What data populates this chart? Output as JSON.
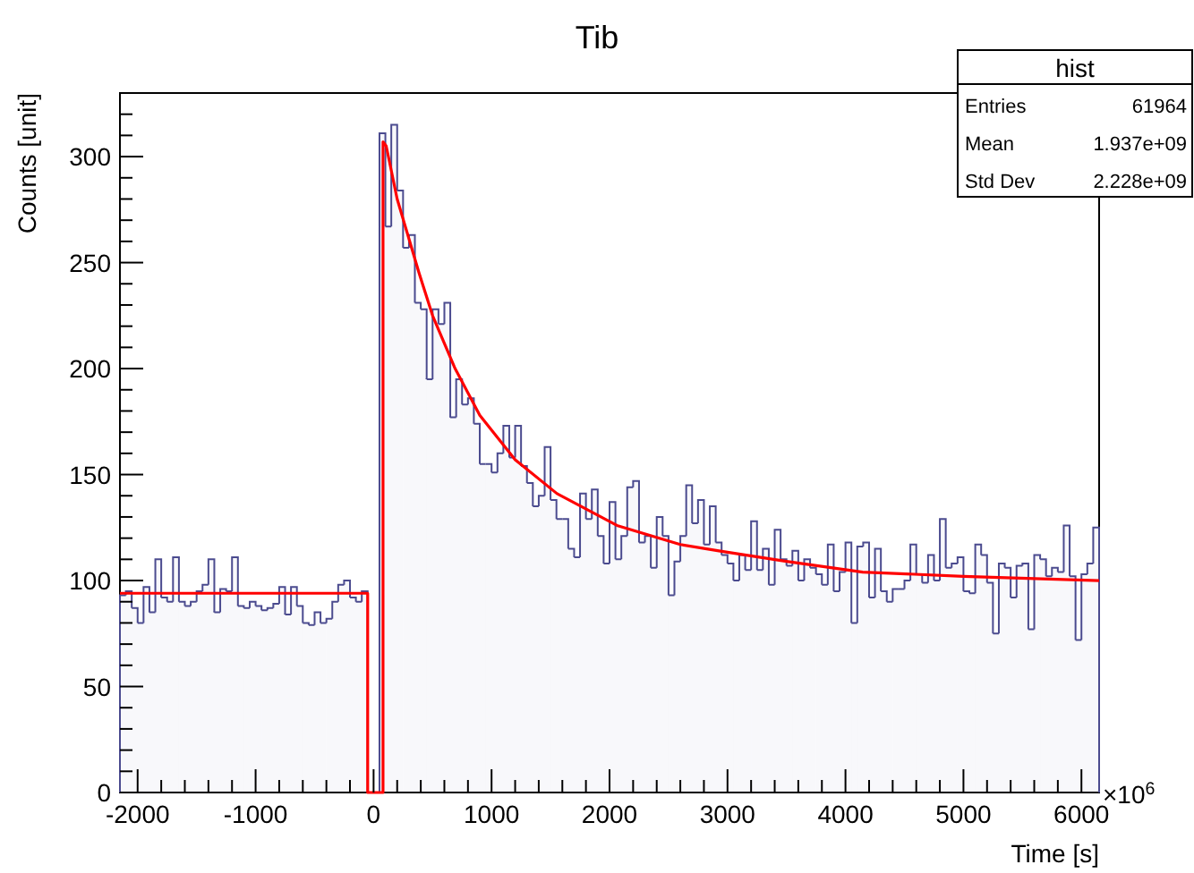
{
  "chart_data": {
    "type": "histogram",
    "title": "Tib",
    "xlabel": "Time [s]",
    "ylabel": "Counts [unit]",
    "annotations": [
      "×10$^{6}$",
      "hist",
      "Entries",
      "61964",
      "Mean",
      "1.937e+09",
      "Std Dev",
      "2.228e+09"
    ],
    "bins": [
      -2150,
      -2100,
      -2050,
      -2000,
      -1950,
      -1900,
      -1850,
      -1800,
      -1750,
      -1700,
      -1650,
      -1600,
      -1550,
      -1500,
      -1450,
      -1400,
      -1350,
      -1300,
      -1250,
      -1200,
      -1150,
      -1100,
      -1050,
      -1000,
      -950,
      -900,
      -850,
      -800,
      -750,
      -700,
      -650,
      -600,
      -550,
      -500,
      -450,
      -400,
      -350,
      -300,
      -250,
      -200,
      -150,
      -100,
      -50,
      0,
      50,
      100,
      150,
      200,
      250,
      300,
      350,
      400,
      450,
      500,
      550,
      600,
      650,
      700,
      750,
      800,
      850,
      900,
      950,
      1000,
      1050,
      1100,
      1150,
      1200,
      1250,
      1300,
      1350,
      1400,
      1450,
      1500,
      1550,
      1600,
      1650,
      1700,
      1750,
      1800,
      1850,
      1900,
      1950,
      2000,
      2050,
      2100,
      2150,
      2200,
      2250,
      2300,
      2350,
      2400,
      2450,
      2500,
      2550,
      2600,
      2650,
      2700,
      2750,
      2800,
      2850,
      2900,
      2950,
      3000,
      3050,
      3100,
      3150,
      3200,
      3250,
      3300,
      3350,
      3400,
      3450,
      3500,
      3550,
      3600,
      3650,
      3700,
      3750,
      3800,
      3850,
      3900,
      3950,
      4000,
      4050,
      4100,
      4150,
      4200,
      4250,
      4300,
      4350,
      4400,
      4450,
      4500,
      4550,
      4600,
      4650,
      4700,
      4750,
      4800,
      4850,
      4900,
      4950,
      5000,
      5050,
      5100,
      5150,
      5200,
      5250,
      5300,
      5350,
      5400,
      5450,
      5500,
      5550,
      5600,
      5650,
      5700,
      5750,
      5800,
      5850,
      5900,
      5950,
      6000,
      6050,
      6100,
      6150
    ],
    "series": [
      {
        "color": "#4b4b8f",
        "values": [
          93,
          95,
          87,
          80,
          97,
          85,
          110,
          92,
          90,
          111,
          90,
          88,
          90,
          95,
          98,
          110,
          85,
          96,
          95,
          111,
          88,
          87,
          90,
          88,
          86,
          87,
          89,
          97,
          84,
          97,
          88,
          80,
          79,
          85,
          80,
          82,
          90,
          98,
          100,
          92,
          90,
          95,
          0,
          0,
          311,
          267,
          315,
          284,
          257,
          263,
          231,
          228,
          195,
          228,
          221,
          231,
          177,
          195,
          183,
          186,
          174,
          155,
          155,
          151,
          160,
          173,
          158,
          173,
          154,
          146,
          135,
          140,
          163,
          138,
          129,
          129,
          115,
          111,
          141,
          129,
          143,
          121,
          108,
          137,
          110,
          121,
          144,
          147,
          118,
          121,
          106,
          130,
          121,
          93,
          109,
          121,
          145,
          127,
          138,
          117,
          135,
          118,
          112,
          108,
          100,
          112,
          105,
          128,
          105,
          115,
          98,
          124,
          110,
          107,
          114,
          100,
          110,
          106,
          103,
          98,
          117,
          95,
          104,
          118,
          80,
          116,
          118,
          92,
          115,
          95,
          90,
          96,
          96,
          100,
          117,
          103,
          99,
          112,
          100,
          129,
          106,
          108,
          111,
          95,
          94,
          117,
          112,
          99,
          75,
          108,
          106,
          92,
          107,
          108,
          77,
          112,
          110,
          102,
          106,
          104,
          126,
          102,
          72,
          103,
          108,
          125
        ]
      },
      {
        "type": "line",
        "color": "#ff0000",
        "x": [
          -2150,
          -50,
          -50,
          80,
          80,
          107,
          200,
          386,
          500,
          691,
          900,
          1200,
          1555,
          2063,
          2600,
          2927,
          3500,
          4146,
          5000,
          6150
        ],
        "values": [
          94,
          94,
          0,
          0,
          307,
          305,
          280,
          245,
          225,
          200,
          178,
          157,
          141,
          126,
          117,
          114,
          109,
          104,
          102,
          100
        ]
      }
    ],
    "xlim": [
      -2150,
      6150
    ],
    "xticks": [
      -2000,
      {
        "value": -1800,
        "label": null
      },
      {
        "value": -1600,
        "label": null
      },
      {
        "value": -1400,
        "label": null
      },
      {
        "value": -1200,
        "label": null
      },
      -1000,
      {
        "value": -800,
        "label": null
      },
      {
        "value": -600,
        "label": null
      },
      {
        "value": -400,
        "label": null
      },
      {
        "value": -200,
        "label": null
      },
      0,
      {
        "value": 200,
        "label": null
      },
      {
        "value": 400,
        "label": null
      },
      {
        "value": 600,
        "label": null
      },
      {
        "value": 800,
        "label": null
      },
      1000,
      {
        "value": 1200,
        "label": null
      },
      {
        "value": 1400,
        "label": null
      },
      {
        "value": 1600,
        "label": null
      },
      {
        "value": 1800,
        "label": null
      },
      2000,
      {
        "value": 2200,
        "label": null
      },
      {
        "value": 2400,
        "label": null
      },
      {
        "value": 2600,
        "label": null
      },
      {
        "value": 2800,
        "label": null
      },
      3000,
      {
        "value": 3200,
        "label": null
      },
      {
        "value": 3400,
        "label": null
      },
      {
        "value": 3600,
        "label": null
      },
      {
        "value": 3800,
        "label": null
      },
      4000,
      {
        "value": 4200,
        "label": null
      },
      {
        "value": 4400,
        "label": null
      },
      {
        "value": 4600,
        "label": null
      },
      {
        "value": 4800,
        "label": null
      },
      5000,
      {
        "value": 5200,
        "label": null
      },
      {
        "value": 5400,
        "label": null
      },
      {
        "value": 5600,
        "label": null
      },
      {
        "value": 5800,
        "label": null
      },
      6000
    ],
    "ylim": [
      0,
      330
    ],
    "yticks": [
      0,
      {
        "value": 10,
        "label": null
      },
      {
        "value": 20,
        "label": null
      },
      {
        "value": 30,
        "label": null
      },
      {
        "value": 40,
        "label": null
      },
      50,
      {
        "value": 60,
        "label": null
      },
      {
        "value": 70,
        "label": null
      },
      {
        "value": 80,
        "label": null
      },
      {
        "value": 90,
        "label": null
      },
      100,
      {
        "value": 110,
        "label": null
      },
      {
        "value": 120,
        "label": null
      },
      {
        "value": 130,
        "label": null
      },
      {
        "value": 140,
        "label": null
      },
      150,
      {
        "value": 160,
        "label": null
      },
      {
        "value": 170,
        "label": null
      },
      {
        "value": 180,
        "label": null
      },
      {
        "value": 190,
        "label": null
      },
      200,
      {
        "value": 210,
        "label": null
      },
      {
        "value": 220,
        "label": null
      },
      {
        "value": 230,
        "label": null
      },
      {
        "value": 240,
        "label": null
      },
      250,
      {
        "value": 260,
        "label": null
      },
      {
        "value": 270,
        "label": null
      },
      {
        "value": 280,
        "label": null
      },
      {
        "value": 290,
        "label": null
      },
      300,
      {
        "value": 310,
        "label": null
      },
      {
        "value": 320,
        "label": null
      },
      {
        "value": 330,
        "label": null
      }
    ]
  }
}
